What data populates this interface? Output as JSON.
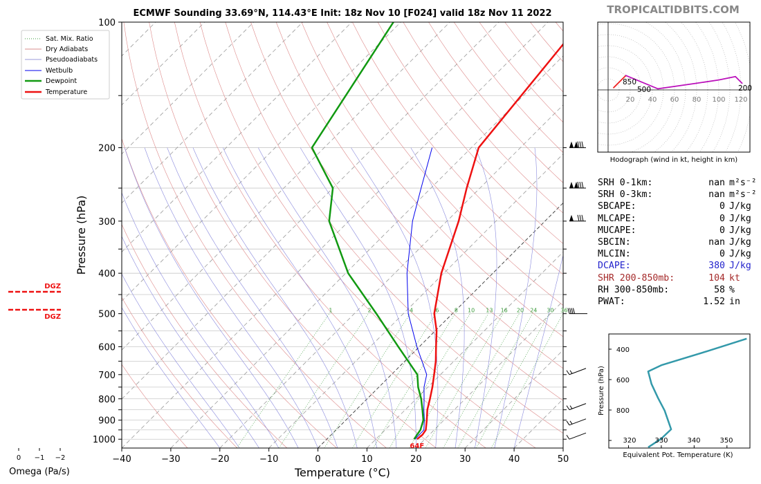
{
  "chart_data": [
    {
      "type": "line",
      "subtype": "skew-t log-p sounding",
      "title": "ECMWF Sounding 33.69°N, 114.43°E Init: 18z Nov 10 [F024] valid 18z Nov 11 2022",
      "xlabel": "Temperature (°C)",
      "ylabel": "Pressure (hPa)",
      "xlim": [
        -40,
        50
      ],
      "ylim": [
        1050,
        100
      ],
      "xticks": [
        -40,
        -30,
        -20,
        -10,
        0,
        10,
        20,
        30,
        40,
        50
      ],
      "yticks": [
        100,
        200,
        300,
        400,
        500,
        600,
        700,
        800,
        900,
        1000
      ],
      "legend": {
        "placement": "top-left",
        "entries": [
          "Sat. Mix. Ratio",
          "Dry Adiabats",
          "Pseudoadiabats",
          "Wetbulb",
          "Dewpoint",
          "Temperature"
        ]
      },
      "series": [
        {
          "name": "Temperature",
          "color": "#ee1111",
          "points": [
            [
              18.4,
              1000
            ],
            [
              18.6,
              975
            ],
            [
              18.3,
              950
            ],
            [
              16.5,
              900
            ],
            [
              14.5,
              850
            ],
            [
              12.8,
              800
            ],
            [
              10.9,
              750
            ],
            [
              8.7,
              700
            ],
            [
              6.3,
              650
            ],
            [
              3.4,
              600
            ],
            [
              0.3,
              550
            ],
            [
              -3.7,
              500
            ],
            [
              -10.5,
              400
            ],
            [
              -17.6,
              300
            ],
            [
              -22.7,
              250
            ],
            [
              -28.5,
              200
            ],
            [
              -33.2,
              100
            ]
          ]
        },
        {
          "name": "Dewpoint",
          "color": "#119911",
          "points": [
            [
              17.8,
              1000
            ],
            [
              17.5,
              975
            ],
            [
              17.2,
              950
            ],
            [
              15.8,
              900
            ],
            [
              13.5,
              850
            ],
            [
              11.0,
              800
            ],
            [
              8.0,
              750
            ],
            [
              5.3,
              700
            ],
            [
              -4.3,
              600
            ],
            [
              -15.5,
              500
            ],
            [
              -29.5,
              400
            ],
            [
              -44.0,
              300
            ],
            [
              -50.0,
              250
            ],
            [
              -62.5,
              200
            ],
            [
              -71.5,
              100
            ]
          ]
        },
        {
          "name": "Wetbulb",
          "color": "#0000ee",
          "points": [
            [
              18.0,
              1000
            ],
            [
              17.9,
              950
            ],
            [
              16.0,
              900
            ],
            [
              13.8,
              850
            ],
            [
              11.6,
              800
            ],
            [
              9.2,
              750
            ],
            [
              7.2,
              700
            ],
            [
              -0.5,
              600
            ],
            [
              -9.0,
              500
            ],
            [
              -17.5,
              400
            ],
            [
              -27.0,
              300
            ],
            [
              -32.0,
              250
            ],
            [
              -38.0,
              200
            ]
          ]
        }
      ],
      "mixing_ratio_labels": [
        "1",
        "2",
        "4",
        "6",
        "8",
        "10",
        "13",
        "16",
        "20",
        "24",
        "30",
        "36"
      ],
      "surface_temp_label": "64F"
    },
    {
      "type": "line",
      "subtype": "hodograph",
      "caption": "Hodograph (wind in kt, height in km)",
      "ring_labels": [
        "20",
        "40",
        "60",
        "80",
        "100",
        "120"
      ],
      "point_labels": [
        "850",
        "500",
        "200"
      ],
      "hodo_points": [
        [
          5,
          2,
          "#ee2222"
        ],
        [
          10,
          7,
          "#ee2222"
        ],
        [
          16,
          13,
          "#ee2222"
        ],
        [
          45,
          1,
          "#bb11bb"
        ],
        [
          80,
          6,
          "#bb11bb"
        ],
        [
          100,
          9,
          "#bb11bb"
        ],
        [
          115,
          12,
          "#bb11bb"
        ],
        [
          121,
          6,
          "#bb11bb"
        ]
      ]
    },
    {
      "type": "line",
      "subtype": "equivalent potential temperature profile",
      "xlabel": "Equivalent Pot. Temperature (K)",
      "ylabel": "Pressure (hPa)",
      "xlim": [
        314,
        357
      ],
      "ylim": [
        1000,
        270
      ],
      "xticks": [
        "320",
        "330",
        "340",
        "350"
      ],
      "yticks": [
        "400",
        "600",
        "800"
      ],
      "line_color": "#3399aa",
      "theta_e_points": [
        [
          326,
          995
        ],
        [
          330,
          940
        ],
        [
          333,
          880
        ],
        [
          332,
          820
        ],
        [
          331,
          760
        ],
        [
          329,
          680
        ],
        [
          327,
          590
        ],
        [
          326,
          510
        ],
        [
          330,
          470
        ],
        [
          344,
          380
        ],
        [
          356,
          300
        ]
      ]
    },
    {
      "type": "line",
      "subtype": "omega",
      "xlabel": "Omega (Pa/s)",
      "xticks": [
        "0",
        "−1",
        "−2"
      ],
      "dgz_label": "DGZ"
    }
  ],
  "header": {
    "brand": "TROPICALTIDBITS.COM"
  },
  "stats": [
    {
      "label": "SRH 0-1km:",
      "value": "nan",
      "unit": "m²s⁻²",
      "color": "default"
    },
    {
      "label": "SRH 0-3km:",
      "value": "nan",
      "unit": "m²s⁻²",
      "color": "default"
    },
    {
      "label": "SBCAPE:",
      "value": "0",
      "unit": "J/kg",
      "color": "default"
    },
    {
      "label": "MLCAPE:",
      "value": "0",
      "unit": "J/kg",
      "color": "default"
    },
    {
      "label": "MUCAPE:",
      "value": "0",
      "unit": "J/kg",
      "color": "default"
    },
    {
      "label": "SBCIN:",
      "value": "nan",
      "unit": "J/kg",
      "color": "default"
    },
    {
      "label": "MLCIN:",
      "value": "0",
      "unit": "J/kg",
      "color": "default"
    },
    {
      "label": "DCAPE:",
      "value": "380",
      "unit": "J/kg",
      "color": "blue"
    },
    {
      "label": "SHR 200-850mb:",
      "value": "104",
      "unit": "kt",
      "color": "brown"
    },
    {
      "label": "RH 300-850mb:",
      "value": "58",
      "unit": "%",
      "color": "default"
    },
    {
      "label": "PWAT:",
      "value": "1.52",
      "unit": "in",
      "color": "default"
    }
  ],
  "wind_levels_hpa": [
    200,
    250,
    300,
    500,
    700,
    850,
    925,
    1000
  ]
}
